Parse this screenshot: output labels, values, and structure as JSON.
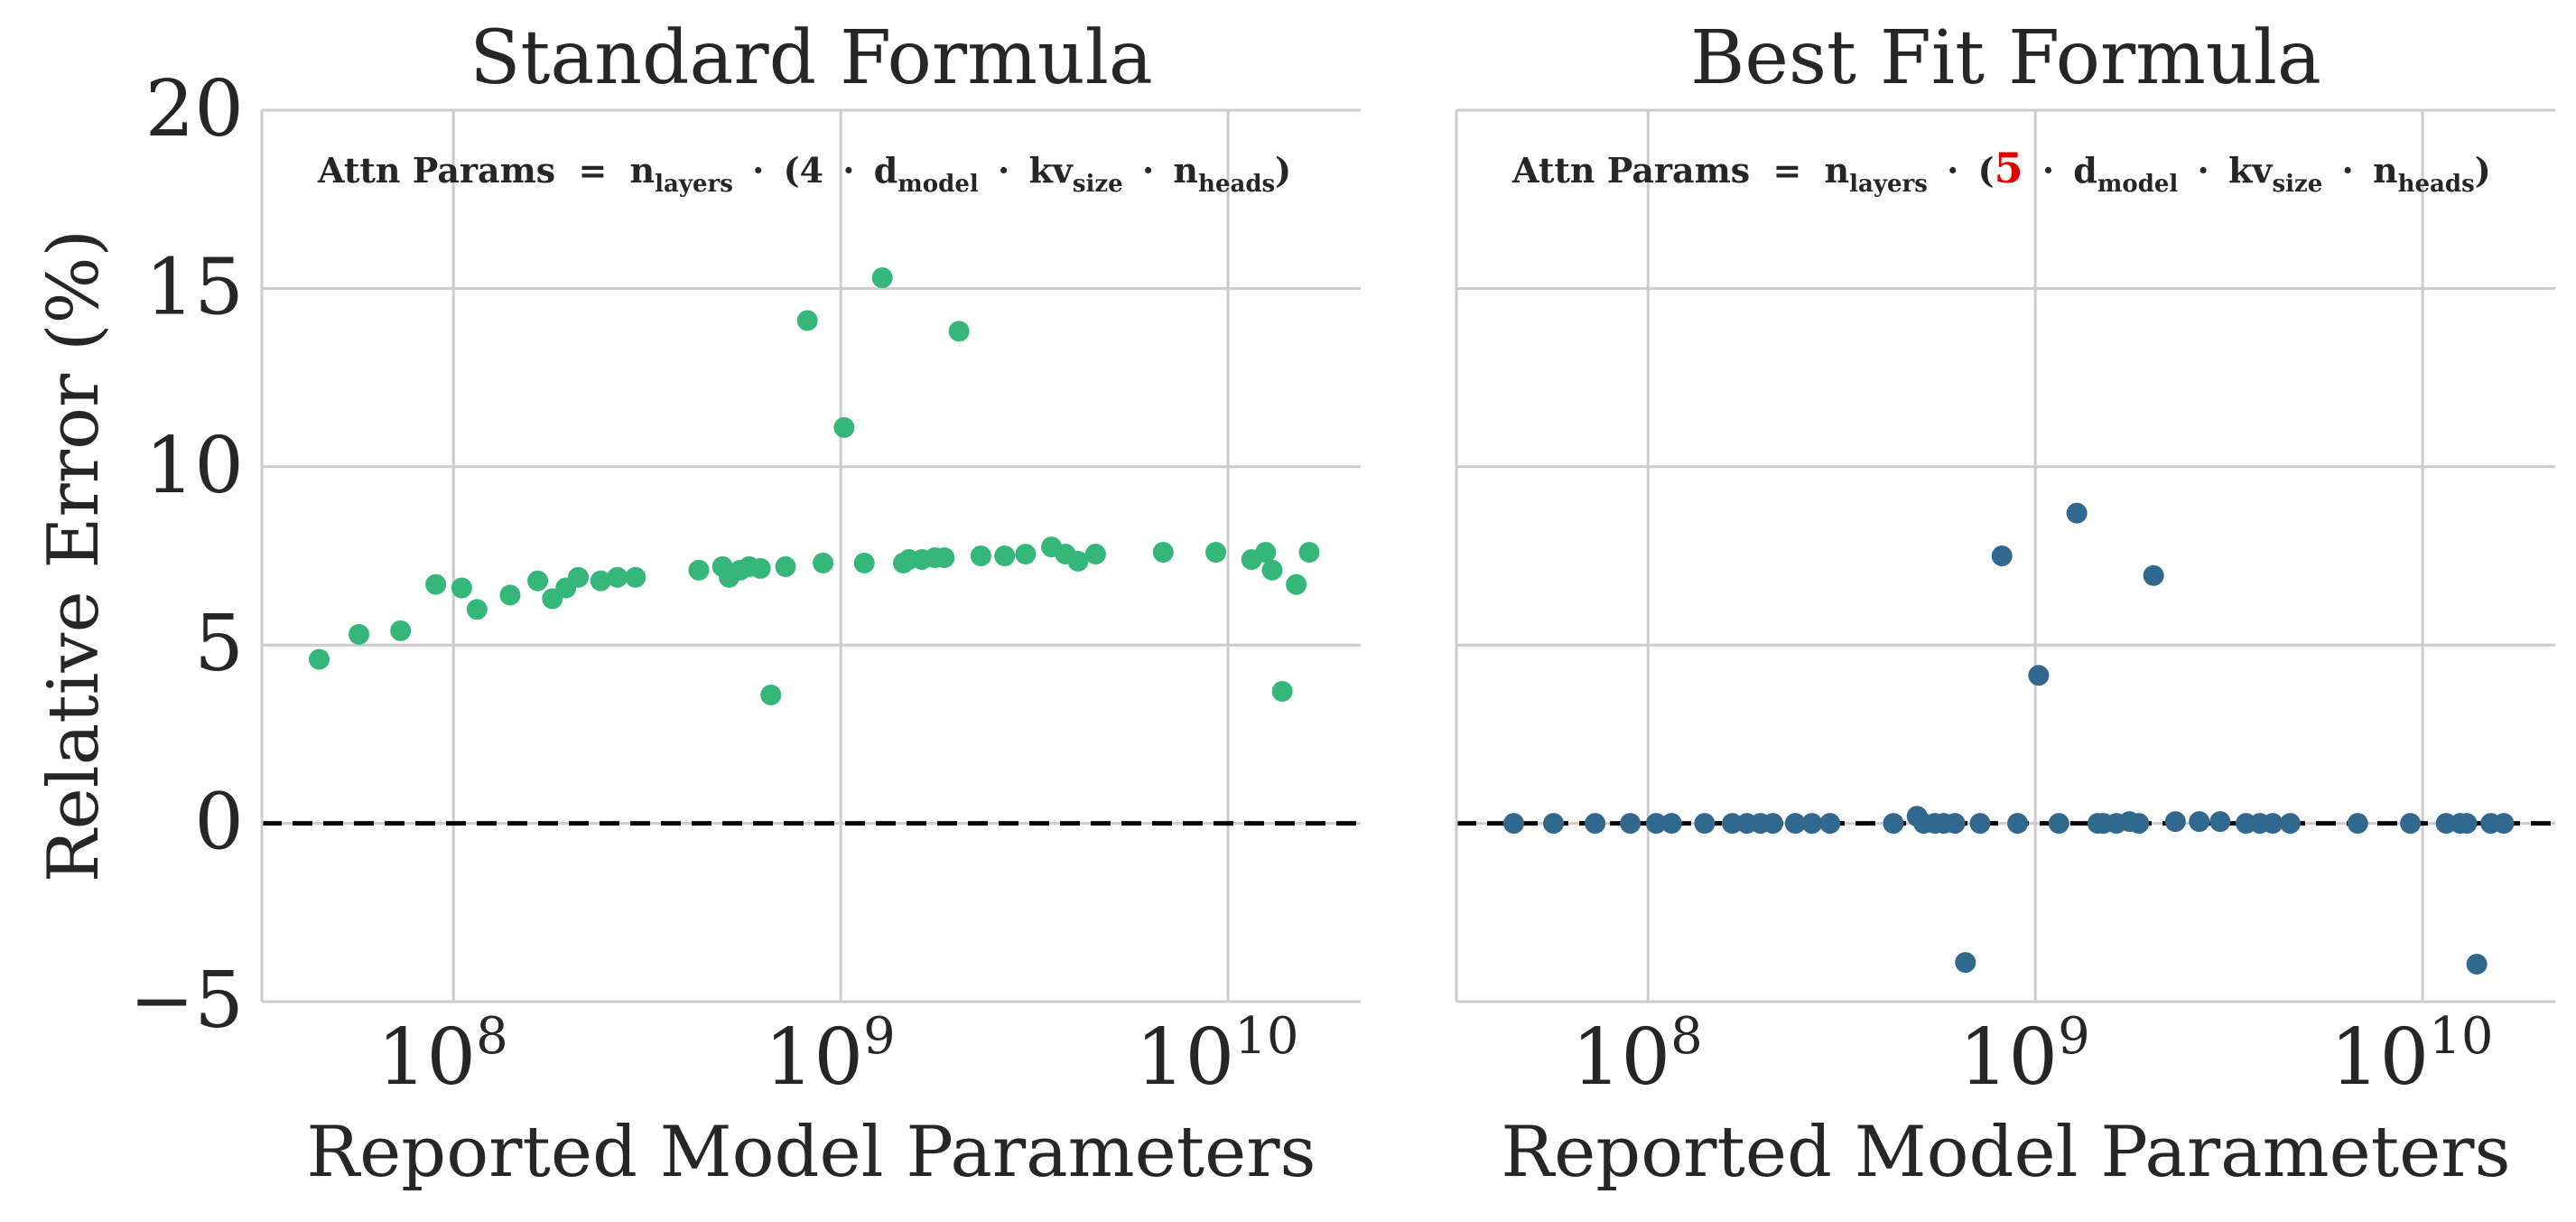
{
  "chart_data": [
    {
      "type": "scatter",
      "title": "Standard Formula",
      "xlabel": "Reported Model Parameters",
      "ylabel": "Relative Error (%)",
      "xscale": "log",
      "xlim": [
        32000000.0,
        22000000000.0
      ],
      "ylim": [
        -5,
        20
      ],
      "yticks": [
        -5,
        0,
        5,
        10,
        15,
        20
      ],
      "ytick_labels": [
        "−5",
        "0",
        "5",
        "10",
        "15",
        "20"
      ],
      "xticks": [
        100000000.0,
        1000000000.0,
        10000000000.0
      ],
      "xtick_labels": [
        {
          "base": "10",
          "exp": "8"
        },
        {
          "base": "10",
          "exp": "9"
        },
        {
          "base": "10",
          "exp": "10"
        }
      ],
      "reference_line": 0,
      "grid": true,
      "color": "#35b779",
      "annotation": {
        "lhs": "Attn Params",
        "eq": "=",
        "n": "n",
        "n_sub": "layers",
        "coef": "4",
        "d": "d",
        "d_sub": "model",
        "kv": "kv",
        "kv_sub": "size",
        "nh": "n",
        "nh_sub": "heads",
        "dot": "·",
        "open": "(",
        "close": ")",
        "coef_highlight": false
      },
      "points": [
        [
          45000000.0,
          4.6
        ],
        [
          57000000.0,
          5.3
        ],
        [
          73000000.0,
          5.4
        ],
        [
          90000000.0,
          6.7
        ],
        [
          105000000.0,
          6.6
        ],
        [
          115000000.0,
          6.0
        ],
        [
          140000000.0,
          6.4
        ],
        [
          165000000.0,
          6.8
        ],
        [
          180000000.0,
          6.3
        ],
        [
          195000000.0,
          6.6
        ],
        [
          210000000.0,
          6.9
        ],
        [
          240000000.0,
          6.8
        ],
        [
          265000000.0,
          6.9
        ],
        [
          295000000.0,
          6.9
        ],
        [
          430000000.0,
          7.1
        ],
        [
          495000000.0,
          7.2
        ],
        [
          515000000.0,
          6.9
        ],
        [
          550000000.0,
          7.1
        ],
        [
          580000000.0,
          7.2
        ],
        [
          620000000.0,
          7.15
        ],
        [
          660000000.0,
          3.6
        ],
        [
          720000000.0,
          7.2
        ],
        [
          820000000.0,
          14.1
        ],
        [
          900000000.0,
          7.3
        ],
        [
          1020000000.0,
          11.1
        ],
        [
          1150000000.0,
          7.3
        ],
        [
          1280000000.0,
          15.3
        ],
        [
          1450000000.0,
          7.3
        ],
        [
          1500000000.0,
          7.4
        ],
        [
          1620000000.0,
          7.4
        ],
        [
          1750000000.0,
          7.45
        ],
        [
          1850000000.0,
          7.45
        ],
        [
          2020000000.0,
          13.8
        ],
        [
          2300000000.0,
          7.5
        ],
        [
          2650000000.0,
          7.5
        ],
        [
          3000000000.0,
          7.55
        ],
        [
          3500000000.0,
          7.75
        ],
        [
          3800000000.0,
          7.55
        ],
        [
          4100000000.0,
          7.35
        ],
        [
          4550000000.0,
          7.55
        ],
        [
          6800000000.0,
          7.6
        ],
        [
          9300000000.0,
          7.6
        ],
        [
          11500000000.0,
          7.4
        ],
        [
          12500000000.0,
          7.6
        ],
        [
          13000000000.0,
          7.1
        ],
        [
          13800000000.0,
          3.7
        ],
        [
          15000000000.0,
          6.7
        ],
        [
          16200000000.0,
          7.6
        ]
      ]
    },
    {
      "type": "scatter",
      "title": "Best Fit Formula",
      "xlabel": "Reported Model Parameters",
      "ylabel": "",
      "xscale": "log",
      "xlim": [
        32000000.0,
        22000000000.0
      ],
      "ylim": [
        -5,
        20
      ],
      "yticks": [
        -5,
        0,
        5,
        10,
        15,
        20
      ],
      "ytick_labels": [],
      "xticks": [
        100000000.0,
        1000000000.0,
        10000000000.0
      ],
      "xtick_labels": [
        {
          "base": "10",
          "exp": "8"
        },
        {
          "base": "10",
          "exp": "9"
        },
        {
          "base": "10",
          "exp": "10"
        }
      ],
      "reference_line": 0,
      "grid": true,
      "color": "#31688e",
      "highlight_color": "#e00000",
      "annotation": {
        "lhs": "Attn Params",
        "eq": "=",
        "n": "n",
        "n_sub": "layers",
        "coef": "5",
        "d": "d",
        "d_sub": "model",
        "kv": "kv",
        "kv_sub": "size",
        "nh": "n",
        "nh_sub": "heads",
        "dot": "·",
        "open": "(",
        "close": ")",
        "coef_highlight": true
      },
      "points": [
        [
          45000000.0,
          0.0
        ],
        [
          57000000.0,
          0.0
        ],
        [
          73000000.0,
          0.0
        ],
        [
          90000000.0,
          0.0
        ],
        [
          105000000.0,
          0.0
        ],
        [
          115000000.0,
          0.0
        ],
        [
          140000000.0,
          0.0
        ],
        [
          165000000.0,
          0.0
        ],
        [
          180000000.0,
          0.0
        ],
        [
          195000000.0,
          0.0
        ],
        [
          210000000.0,
          0.0
        ],
        [
          240000000.0,
          0.0
        ],
        [
          265000000.0,
          0.0
        ],
        [
          295000000.0,
          0.0
        ],
        [
          430000000.0,
          0.0
        ],
        [
          495000000.0,
          0.2
        ],
        [
          515000000.0,
          0.0
        ],
        [
          550000000.0,
          0.0
        ],
        [
          580000000.0,
          0.0
        ],
        [
          620000000.0,
          0.0
        ],
        [
          660000000.0,
          -3.9
        ],
        [
          720000000.0,
          0.0
        ],
        [
          820000000.0,
          7.5
        ],
        [
          900000000.0,
          0.0
        ],
        [
          1020000000.0,
          4.15
        ],
        [
          1150000000.0,
          0.0
        ],
        [
          1280000000.0,
          8.7
        ],
        [
          1450000000.0,
          0.0
        ],
        [
          1500000000.0,
          0.0
        ],
        [
          1620000000.0,
          0.0
        ],
        [
          1750000000.0,
          0.05
        ],
        [
          1850000000.0,
          0.0
        ],
        [
          2020000000.0,
          6.95
        ],
        [
          2300000000.0,
          0.05
        ],
        [
          2650000000.0,
          0.05
        ],
        [
          3000000000.0,
          0.05
        ],
        [
          3500000000.0,
          0.0
        ],
        [
          3800000000.0,
          0.0
        ],
        [
          4100000000.0,
          0.0
        ],
        [
          4550000000.0,
          0.0
        ],
        [
          6800000000.0,
          0.0
        ],
        [
          9300000000.0,
          0.0
        ],
        [
          11500000000.0,
          0.0
        ],
        [
          12500000000.0,
          0.0
        ],
        [
          13000000000.0,
          0.0
        ],
        [
          13800000000.0,
          -3.95
        ],
        [
          15000000000.0,
          0.0
        ],
        [
          16200000000.0,
          0.0
        ]
      ]
    }
  ]
}
